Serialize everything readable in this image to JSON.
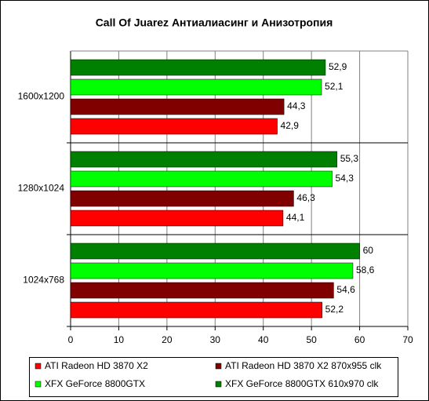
{
  "chart_data": {
    "type": "bar",
    "orientation": "horizontal",
    "title": "Call Of Juarez Антиалиасинг и Анизотропия",
    "categories": [
      "1600x1200",
      "1280x1024",
      "1024x768"
    ],
    "series": [
      {
        "name": "ATI Radeon HD 3870 X2",
        "color": "#ff0000",
        "values": [
          42.9,
          44.1,
          52.2
        ],
        "value_labels": [
          "42,9",
          "44,1",
          "52,2"
        ]
      },
      {
        "name": "ATI Radeon HD 3870 X2 870x955 clk",
        "color": "#800000",
        "values": [
          44.3,
          46.3,
          54.6
        ],
        "value_labels": [
          "44,3",
          "46,3",
          "54,6"
        ]
      },
      {
        "name": "XFX GeForce 8800GTX",
        "color": "#00ff00",
        "values": [
          52.1,
          54.3,
          58.6
        ],
        "value_labels": [
          "52,1",
          "54,3",
          "58,6"
        ]
      },
      {
        "name": "XFX GeForce 8800GTX 610x970 clk",
        "color": "#008000",
        "values": [
          52.9,
          55.3,
          60
        ],
        "value_labels": [
          "52,9",
          "55,3",
          "60"
        ]
      }
    ],
    "xlim": [
      0,
      70
    ],
    "xticks": [
      0,
      10,
      20,
      30,
      40,
      50,
      60,
      70
    ],
    "grid": true
  }
}
